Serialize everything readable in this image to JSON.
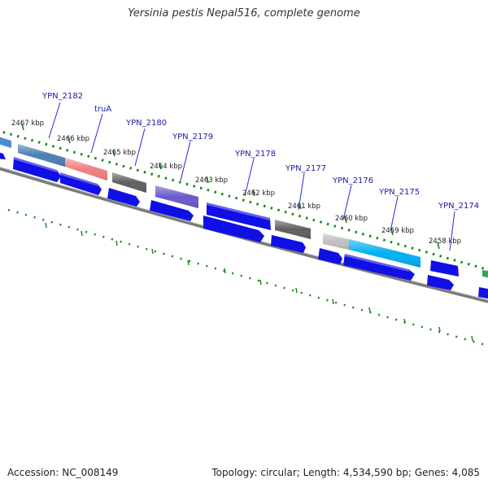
{
  "title": "Yersinia pestis Nepal516, complete genome",
  "footer": {
    "accession": "Accession: NC_008149",
    "summary": "Topology: circular; Length: 4,534,590 bp; Genes: 4,085"
  },
  "colors": {
    "cds_blue": "#1010e6",
    "tick_green": "#1a8a1a",
    "backbone": "#808080",
    "label_blue": "#1a1aa8",
    "leader_blue": "#2a2ad0"
  },
  "scale_ticks": [
    "2467 kbp",
    "2466 kbp",
    "2465 kbp",
    "2464 kbp",
    "2463 kbp",
    "2462 kbp",
    "2461 kbp",
    "2460 kbp",
    "2459 kbp",
    "2458 kbp"
  ],
  "gene_labels": [
    "YPN_2182",
    "truA",
    "YPN_2180",
    "YPN_2179",
    "YPN_2178",
    "YPN_2177",
    "YPN_2176",
    "YPN_2175",
    "YPN_2174"
  ]
}
